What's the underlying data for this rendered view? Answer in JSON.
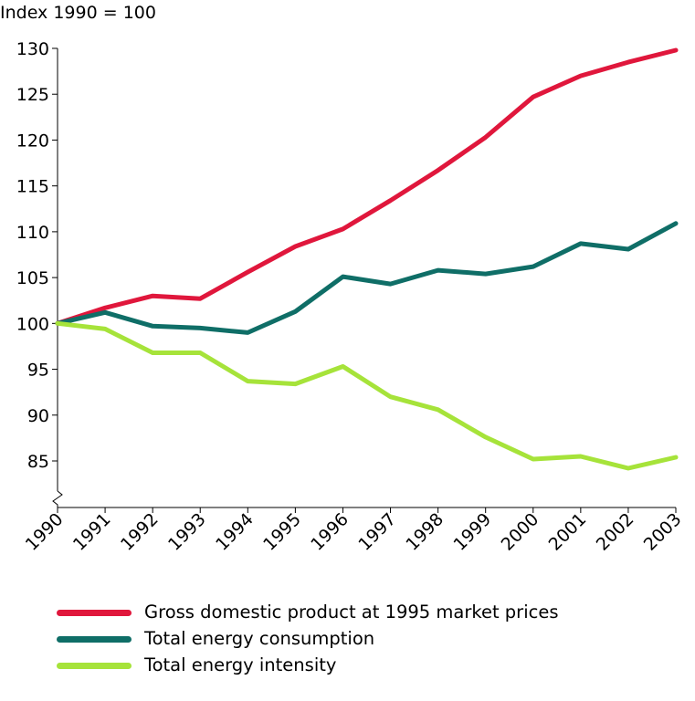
{
  "chart_data": {
    "type": "line",
    "ylabel": "Index 1990 = 100",
    "ylim": [
      80,
      130
    ],
    "yticks": [
      "85",
      "90",
      "95",
      "100",
      "105",
      "110",
      "115",
      "120",
      "125",
      "130"
    ],
    "y_axis_break": true,
    "grid": false,
    "legend_position": "bottom",
    "x": [
      "1990",
      "1991",
      "1992",
      "1993",
      "1994",
      "1995",
      "1996",
      "1997",
      "1998",
      "1999",
      "2000",
      "2001",
      "2002",
      "2003"
    ],
    "series": [
      {
        "name": "Gross domestic product at 1995 market prices",
        "color": "#e0173c",
        "values": [
          100,
          101.7,
          103.0,
          102.7,
          105.6,
          108.4,
          110.3,
          113.4,
          116.7,
          120.3,
          124.7,
          127.0,
          128.5,
          129.8
        ]
      },
      {
        "name": "Total energy consumption",
        "color": "#0f6e67",
        "values": [
          100,
          101.2,
          99.7,
          99.5,
          99.0,
          101.3,
          105.1,
          104.3,
          105.8,
          105.4,
          106.2,
          108.7,
          108.1,
          110.9
        ]
      },
      {
        "name": "Total energy intensity",
        "color": "#a6e33a",
        "values": [
          100,
          99.4,
          96.8,
          96.8,
          93.7,
          93.4,
          95.3,
          92.0,
          90.6,
          87.6,
          85.2,
          85.5,
          84.2,
          85.4
        ]
      }
    ]
  }
}
